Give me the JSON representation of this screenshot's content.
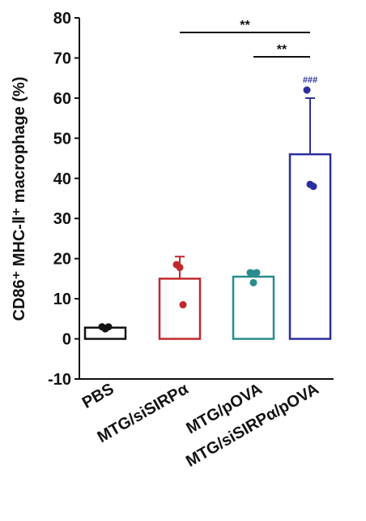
{
  "chart_data": {
    "type": "bar",
    "ylabel": "CD86⁺ MHC-Ⅱ⁺ macrophage (%)",
    "categories": [
      "PBS",
      "MTG/siSIRPα",
      "MTG/pOVA",
      "MTG/siSIRPα/pOVA"
    ],
    "values": [
      2.8,
      15,
      15.5,
      46
    ],
    "errors": [
      0.5,
      5.5,
      1.5,
      14
    ],
    "points": [
      [
        3,
        2.5,
        3
      ],
      [
        18.5,
        17.8,
        8.5
      ],
      [
        16.5,
        14,
        16.5
      ],
      [
        62,
        38.5,
        38
      ]
    ],
    "colors": [
      "#111111",
      "#c0282d",
      "#2a8c8c",
      "#2b2f9e"
    ],
    "ylim": [
      -10,
      80
    ],
    "yticks": [
      -10,
      0,
      10,
      20,
      30,
      40,
      50,
      60,
      70,
      80
    ],
    "annotations": [
      "**",
      "**",
      "###"
    ]
  }
}
